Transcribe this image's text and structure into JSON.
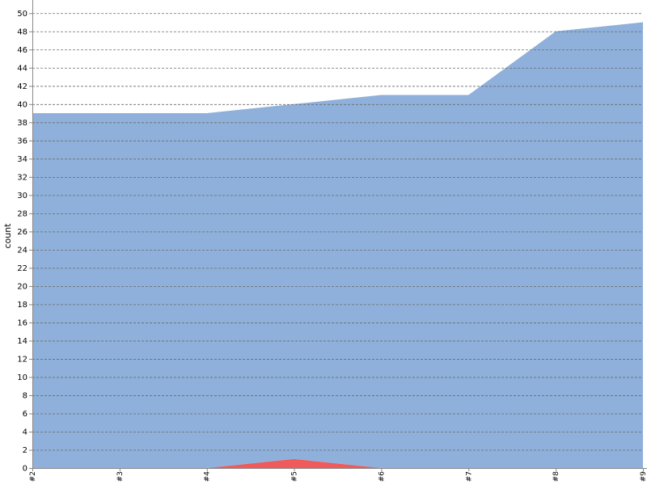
{
  "chart_data": {
    "type": "area",
    "stacked": true,
    "ylabel": "count",
    "xlabel": "",
    "title": "",
    "categories": [
      "#2",
      "#3",
      "#4",
      "#5",
      "#6",
      "#7",
      "#8",
      "#9"
    ],
    "ylim": [
      0,
      51
    ],
    "yticks": [
      0,
      2,
      4,
      6,
      8,
      10,
      12,
      14,
      16,
      18,
      20,
      22,
      24,
      26,
      28,
      30,
      32,
      34,
      36,
      38,
      40,
      42,
      44,
      46,
      48,
      50
    ],
    "grid": true,
    "legend": "none",
    "series": [
      {
        "values": [
          0,
          0,
          0,
          1,
          0,
          0,
          0,
          0
        ],
        "color": "#f05a5a"
      },
      {
        "values": [
          39,
          39,
          39,
          39,
          41,
          41,
          48,
          49
        ],
        "color": "#8eb0da"
      }
    ]
  }
}
